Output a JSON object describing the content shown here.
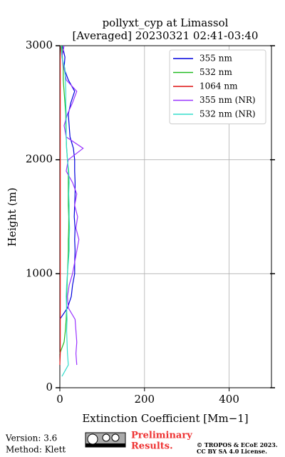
{
  "chart_data": {
    "type": "line",
    "title": [
      "pollyxt_cyp at Limassol",
      "[Averaged] 20230321 02:41-03:40"
    ],
    "xlabel": "Extinction Coefficient [Mm−1]",
    "ylabel": "Height (m)",
    "y": [
      100,
      200,
      300,
      400,
      500,
      600,
      700,
      800,
      900,
      1000,
      1100,
      1200,
      1300,
      1400,
      1500,
      1600,
      1700,
      1800,
      1900,
      2000,
      2100,
      2200,
      2300,
      2400,
      2500,
      2600,
      2700,
      2800,
      2900,
      3000
    ],
    "series": [
      {
        "name": "355 nm",
        "color": "#0000dd",
        "values": [
          null,
          null,
          null,
          null,
          null,
          0,
          18,
          27,
          30,
          35,
          35,
          36,
          35,
          36,
          34,
          35,
          36,
          36,
          35,
          35,
          32,
          24,
          22,
          20,
          26,
          35,
          20,
          10,
          12,
          6
        ]
      },
      {
        "name": "532 nm",
        "color": "#22bb22",
        "values": [
          null,
          null,
          0,
          10,
          13,
          15,
          16,
          16,
          17,
          18,
          19,
          20,
          20,
          21,
          21,
          20,
          20,
          20,
          20,
          18,
          16,
          15,
          14,
          14,
          12,
          10,
          8,
          8,
          6,
          5
        ]
      },
      {
        "name": "1064 nm",
        "color": "#dd1111",
        "values": [
          null,
          0,
          1,
          1,
          1,
          1,
          1,
          1,
          1,
          1,
          1,
          1,
          1,
          1,
          1,
          1,
          1,
          1,
          1,
          1,
          1,
          1,
          1,
          1,
          1,
          1,
          1,
          1,
          1,
          2
        ]
      },
      {
        "name": "355 nm (NR)",
        "color": "#9933ff",
        "values": [
          null,
          40,
          38,
          40,
          38,
          36,
          20,
          18,
          22,
          30,
          35,
          40,
          45,
          38,
          42,
          35,
          40,
          30,
          15,
          20,
          55,
          15,
          10,
          18,
          30,
          40,
          15,
          10,
          5,
          10
        ]
      },
      {
        "name": "532 nm (NR)",
        "color": "#33ddcc",
        "values": [
          5,
          20,
          18,
          17,
          16,
          17,
          16,
          15,
          16,
          18,
          20,
          22,
          22,
          23,
          22,
          22,
          21,
          22,
          21,
          18,
          16,
          15,
          15,
          15,
          14,
          14,
          13,
          12,
          5,
          3
        ]
      }
    ],
    "xlim": [
      0,
      500
    ],
    "ylim": [
      0,
      3000
    ],
    "xticks": [
      0,
      200,
      400
    ],
    "yticks": [
      0,
      1000,
      2000,
      3000
    ],
    "grid": true,
    "legend": "upper right"
  },
  "footer": {
    "version": "Version: 3.6",
    "method": "Method: Klett",
    "preliminary": [
      "Preliminary",
      "Results."
    ],
    "copyright": [
      "© TROPOS & ECoE 2023.",
      "CC BY SA 4.0 License."
    ]
  }
}
